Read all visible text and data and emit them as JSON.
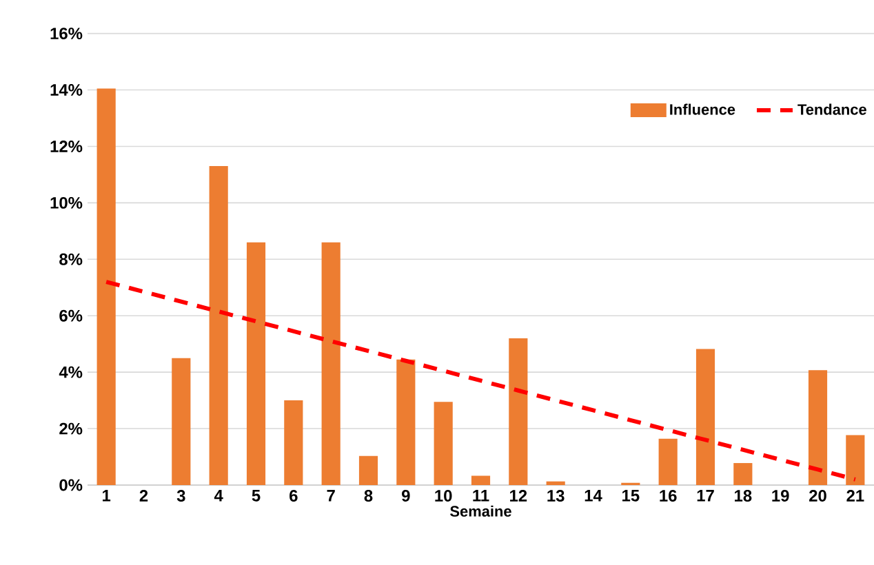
{
  "chart_data": {
    "type": "bar",
    "xlabel": "Semaine",
    "categories": [
      "1",
      "2",
      "3",
      "4",
      "5",
      "6",
      "7",
      "8",
      "9",
      "10",
      "11",
      "12",
      "13",
      "14",
      "15",
      "16",
      "17",
      "18",
      "19",
      "20",
      "21"
    ],
    "series": [
      {
        "name": "Influence",
        "color": "#ed7d31",
        "values": [
          14.05,
          0,
          4.5,
          11.3,
          8.6,
          3.0,
          8.6,
          1.03,
          4.45,
          2.95,
          0.33,
          5.2,
          0.13,
          0,
          0.08,
          1.64,
          4.82,
          0.78,
          0,
          4.07,
          1.77
        ]
      },
      {
        "name": "Tendance",
        "type": "line",
        "color": "#ff0000",
        "line_style": "dashed",
        "values": [
          7.2,
          6.85,
          6.5,
          6.15,
          5.8,
          5.45,
          5.1,
          4.75,
          4.4,
          4.05,
          3.7,
          3.35,
          3.0,
          2.65,
          2.3,
          1.95,
          1.6,
          1.25,
          0.9,
          0.55,
          0.2
        ]
      }
    ],
    "ylim": [
      0,
      16
    ],
    "yticks": [
      {
        "value": 0,
        "label": "0%"
      },
      {
        "value": 2,
        "label": "2%"
      },
      {
        "value": 4,
        "label": "4%"
      },
      {
        "value": 6,
        "label": "6%"
      },
      {
        "value": 8,
        "label": "8%"
      },
      {
        "value": 10,
        "label": "10%"
      },
      {
        "value": 12,
        "label": "12%"
      },
      {
        "value": 14,
        "label": "14%"
      },
      {
        "value": 16,
        "label": "16%"
      }
    ],
    "grid": "y",
    "legend": "top right"
  }
}
